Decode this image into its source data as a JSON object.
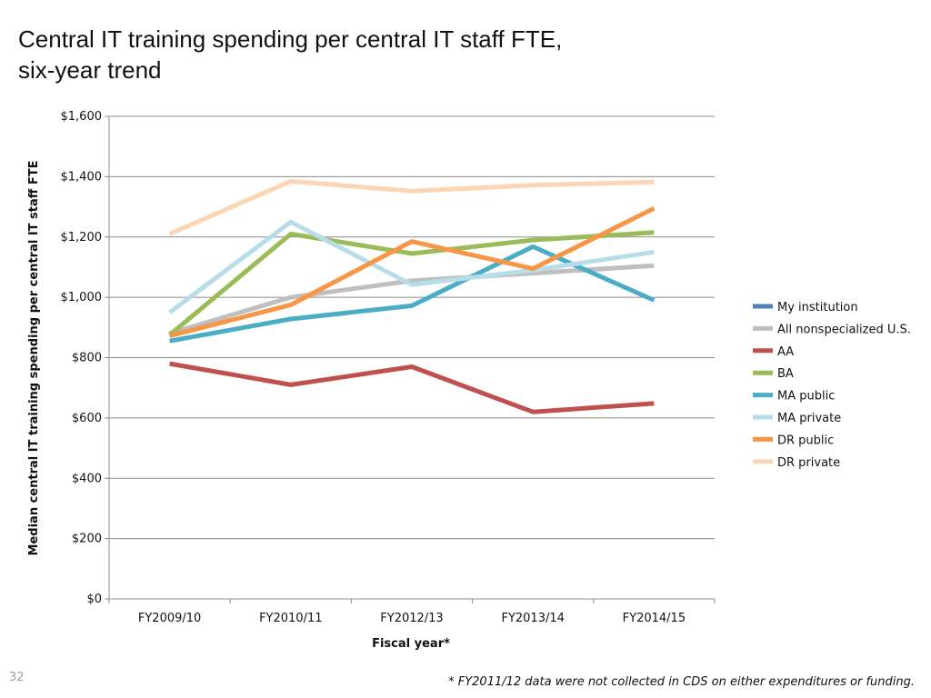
{
  "title_line1": "Central IT training spending per central IT staff FTE,",
  "title_line2": "six-year trend",
  "slide_number": "32",
  "footnote": "* FY2011/12 data were not collected in CDS on either expenditures or funding.",
  "chart_data": {
    "type": "line",
    "xlabel": "Fiscal year*",
    "ylabel": "Median central IT training spending per central IT staff FTE",
    "categories": [
      "FY2009/10",
      "FY2010/11",
      "FY2012/13",
      "FY2013/14",
      "FY2014/15"
    ],
    "ylim": [
      0,
      1600
    ],
    "yticks": [
      0,
      200,
      400,
      600,
      800,
      1000,
      1200,
      1400,
      1600
    ],
    "ytick_labels": [
      "$0",
      "$200",
      "$400",
      "$600",
      "$800",
      "$1,000",
      "$1,200",
      "$1,400",
      "$1,600"
    ],
    "grid": true,
    "legend_position": "right",
    "series": [
      {
        "name": "My institution",
        "color": "#4f81bd",
        "values": [
          null,
          null,
          null,
          null,
          null
        ]
      },
      {
        "name": "All nonspecialized U.S.",
        "color": "#bfbfbf",
        "values": [
          880,
          1000,
          1055,
          1080,
          1105
        ]
      },
      {
        "name": "AA",
        "color": "#c0504d",
        "values": [
          780,
          710,
          770,
          620,
          648
        ]
      },
      {
        "name": "BA",
        "color": "#9bbb59",
        "values": [
          875,
          1210,
          1145,
          1190,
          1215
        ]
      },
      {
        "name": "MA public",
        "color": "#4bacc6",
        "values": [
          855,
          928,
          972,
          1168,
          990
        ]
      },
      {
        "name": "MA private",
        "color": "#b7dee8",
        "values": [
          950,
          1250,
          1042,
          1090,
          1150
        ]
      },
      {
        "name": "DR public",
        "color": "#f79646",
        "values": [
          872,
          975,
          1185,
          1095,
          1295
        ]
      },
      {
        "name": "DR private",
        "color": "#fcd5b5",
        "values": [
          1210,
          1385,
          1352,
          1372,
          1382
        ]
      }
    ]
  }
}
